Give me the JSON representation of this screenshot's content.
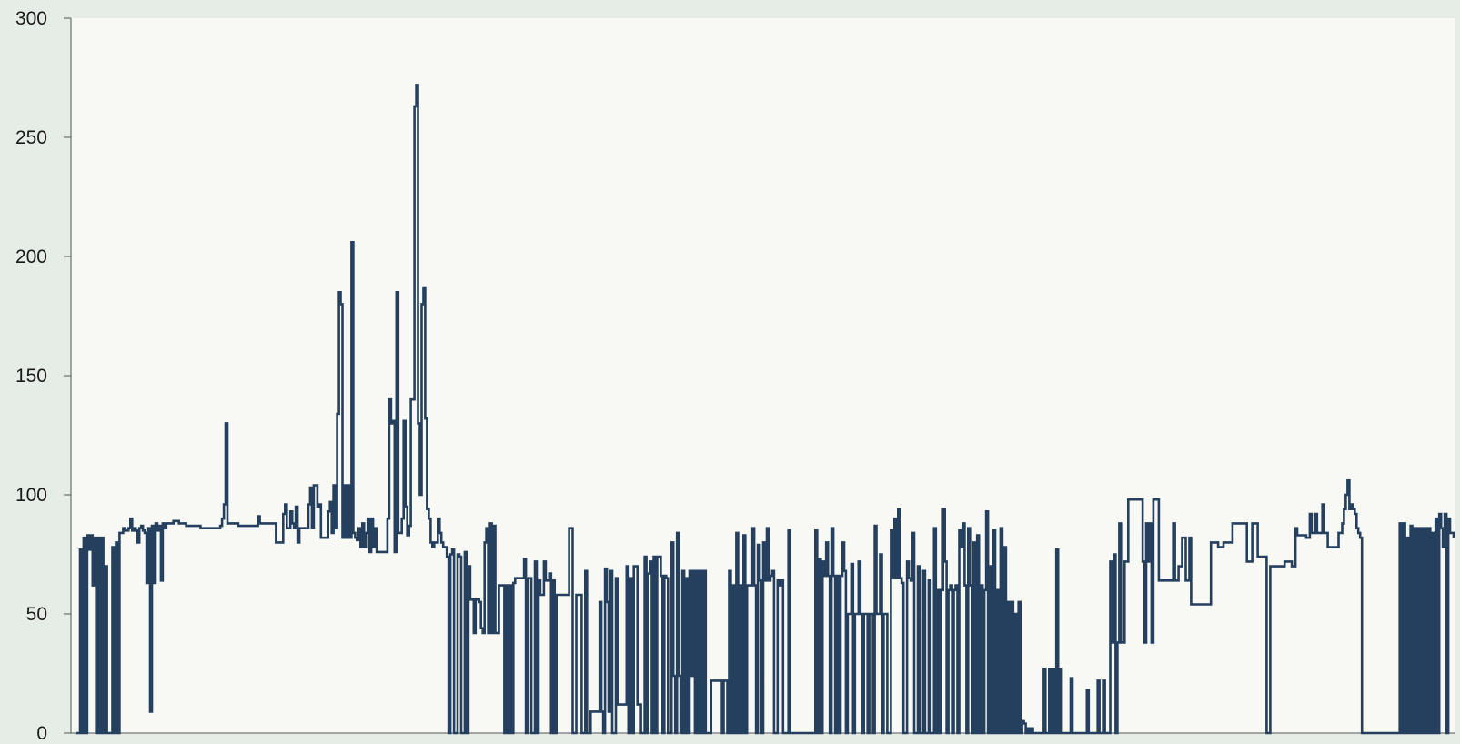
{
  "chart_data": {
    "type": "line",
    "title": "",
    "xlabel": "",
    "ylabel": "",
    "ylim": [
      0,
      300
    ],
    "y_ticks": [
      0,
      50,
      100,
      150,
      200,
      250,
      300
    ],
    "y_tick_labels": [
      "0",
      "50",
      "100",
      "150",
      "200",
      "250",
      "300"
    ],
    "x_tick_labels": [],
    "grid": false,
    "legend": "none",
    "colors": {
      "series": "#253f5e",
      "plot_background": "#f8f8f4",
      "page_background": "#e6ece6",
      "axis": "#555555"
    },
    "series": [
      {
        "values": [
          0,
          0,
          77,
          0,
          82,
          0,
          83,
          77,
          83,
          62,
          82,
          0,
          82,
          0,
          82,
          0,
          70,
          0,
          0,
          0,
          78,
          0,
          80,
          0,
          84,
          84,
          86,
          85,
          85,
          86,
          90,
          85,
          86,
          85,
          80,
          86,
          87,
          85,
          84,
          63,
          86,
          9,
          87,
          63,
          88,
          85,
          87,
          64,
          88,
          86,
          88,
          88,
          88,
          88,
          89,
          89,
          89,
          88,
          88,
          88,
          88,
          87,
          87,
          87,
          87,
          87,
          87,
          87,
          87,
          86,
          86,
          86,
          86,
          86,
          86,
          86,
          86,
          86,
          86,
          86,
          87,
          90,
          96,
          130,
          88,
          88,
          88,
          88,
          88,
          88,
          87,
          87,
          87,
          87,
          87,
          87,
          87,
          87,
          87,
          87,
          87,
          91,
          88,
          88,
          88,
          88,
          88,
          88,
          88,
          88,
          88,
          80,
          80,
          80,
          80,
          92,
          96,
          86,
          86,
          93,
          88,
          86,
          95,
          80,
          86,
          86,
          86,
          86,
          86,
          96,
          103,
          86,
          104,
          104,
          95,
          96,
          82,
          82,
          82,
          82,
          93,
          97,
          84,
          104,
          86,
          134,
          185,
          180,
          82,
          104,
          82,
          104,
          82,
          206,
          84,
          82,
          81,
          86,
          78,
          88,
          78,
          84,
          90,
          76,
          90,
          78,
          86,
          76,
          76,
          76,
          76,
          76,
          76,
          90,
          140,
          130,
          131,
          76,
          185,
          84,
          84,
          90,
          131,
          95,
          83,
          87,
          140,
          140,
          263,
          272,
          130,
          100,
          180,
          187,
          132,
          94,
          90,
          80,
          78,
          80,
          80,
          90,
          84,
          80,
          78,
          78,
          74,
          0,
          75,
          77,
          0,
          0,
          75,
          74,
          0,
          0,
          76,
          0,
          70,
          56,
          56,
          42,
          56,
          56,
          55,
          44,
          42,
          80,
          86,
          42,
          88,
          42,
          87,
          42,
          42,
          62,
          62,
          62,
          0,
          62,
          0,
          62,
          0,
          63,
          65,
          65,
          65,
          65,
          65,
          73,
          0,
          65,
          65,
          0,
          0,
          72,
          0,
          64,
          58,
          58,
          72,
          64,
          64,
          67,
          0,
          64,
          0,
          58,
          58,
          58,
          58,
          58,
          58,
          58,
          86,
          86,
          0,
          0,
          58,
          58,
          58,
          0,
          0,
          68,
          0,
          0,
          9,
          9,
          9,
          9,
          9,
          55,
          9,
          0,
          69,
          55,
          9,
          68,
          0,
          0,
          65,
          12,
          12,
          12,
          12,
          12,
          70,
          0,
          65,
          0,
          70,
          70,
          12,
          12,
          0,
          0,
          74,
          0,
          67,
          72,
          0,
          74,
          0,
          74,
          74,
          66,
          0,
          66,
          65,
          0,
          0,
          80,
          24,
          0,
          84,
          24,
          0,
          68,
          0,
          65,
          0,
          68,
          24,
          68,
          0,
          68,
          0,
          68,
          0,
          68,
          0,
          0,
          0,
          22,
          22,
          22,
          22,
          22,
          22,
          0,
          22,
          22,
          0,
          68,
          0,
          62,
          0,
          84,
          0,
          62,
          0,
          83,
          0,
          62,
          62,
          62,
          86,
          62,
          0,
          79,
          64,
          0,
          80,
          64,
          86,
          64,
          66,
          68,
          0,
          0,
          64,
          62,
          64,
          0,
          0,
          0,
          85,
          0,
          0,
          0,
          0,
          0,
          0,
          0,
          0,
          0,
          0,
          0,
          0,
          0,
          0,
          85,
          0,
          73,
          0,
          72,
          66,
          80,
          66,
          0,
          86,
          66,
          0,
          66,
          0,
          66,
          80,
          68,
          0,
          50,
          50,
          71,
          0,
          50,
          50,
          72,
          50,
          0,
          50,
          50,
          0,
          50,
          50,
          0,
          87,
          50,
          50,
          75,
          0,
          50,
          50,
          0,
          0,
          85,
          65,
          90,
          65,
          94,
          65,
          63,
          0,
          0,
          72,
          65,
          64,
          84,
          0,
          0,
          70,
          0,
          0,
          68,
          0,
          0,
          64,
          0,
          0,
          86,
          0,
          60,
          0,
          60,
          94,
          72,
          0,
          60,
          62,
          0,
          60,
          62,
          0,
          85,
          78,
          88,
          62,
          0,
          86,
          62,
          0,
          80,
          0,
          83,
          0,
          62,
          0,
          60,
          93,
          0,
          70,
          0,
          85,
          0,
          60,
          0,
          86,
          0,
          78,
          0,
          55,
          0,
          55,
          0,
          50,
          0,
          55,
          0,
          5,
          4,
          0,
          2,
          0,
          2,
          0,
          0,
          0,
          0,
          0,
          0,
          27,
          0,
          0,
          27,
          0,
          27,
          0,
          77,
          0,
          27,
          0,
          0,
          0,
          0,
          0,
          23,
          0,
          0,
          0,
          0,
          0,
          0,
          0,
          0,
          18,
          0,
          0,
          0,
          0,
          0,
          22,
          0,
          0,
          22,
          0,
          0,
          0,
          72,
          38,
          75,
          0,
          38,
          88,
          38,
          38,
          72,
          72,
          98,
          98,
          98,
          98,
          98,
          98,
          98,
          98,
          72,
          38,
          88,
          72,
          88,
          38,
          98,
          98,
          98,
          64,
          64,
          64,
          64,
          64,
          64,
          64,
          64,
          88,
          64,
          64,
          70,
          70,
          82,
          82,
          64,
          64,
          82,
          54,
          54,
          54,
          54,
          54,
          54,
          54,
          54,
          54,
          54,
          54,
          80,
          80,
          80,
          80,
          78,
          78,
          78,
          80,
          80,
          80,
          80,
          80,
          88,
          88,
          88,
          88,
          88,
          88,
          88,
          88,
          72,
          72,
          72,
          88,
          88,
          88,
          74,
          74,
          74,
          74,
          74,
          0,
          0,
          70,
          70,
          70,
          70,
          70,
          70,
          70,
          70,
          72,
          72,
          72,
          72,
          70,
          70,
          86,
          83,
          83,
          83,
          83,
          83,
          82,
          82,
          92,
          84,
          84,
          92,
          84,
          84,
          84,
          96,
          84,
          84,
          78,
          78,
          78,
          78,
          78,
          78,
          84,
          84,
          88,
          94,
          100,
          106,
          94,
          96,
          94,
          92,
          86,
          84,
          82,
          0,
          0,
          0,
          0,
          0,
          0,
          0,
          0,
          0,
          0,
          0,
          0,
          0,
          0,
          0,
          0,
          0,
          0,
          0,
          0,
          0,
          88,
          0,
          88,
          0,
          82,
          0,
          87,
          0,
          86,
          0,
          86,
          0,
          86,
          0,
          86,
          0,
          86,
          0,
          84,
          0,
          90,
          0,
          92,
          86,
          78,
          92,
          0,
          90,
          84,
          84,
          82
        ]
      }
    ]
  }
}
